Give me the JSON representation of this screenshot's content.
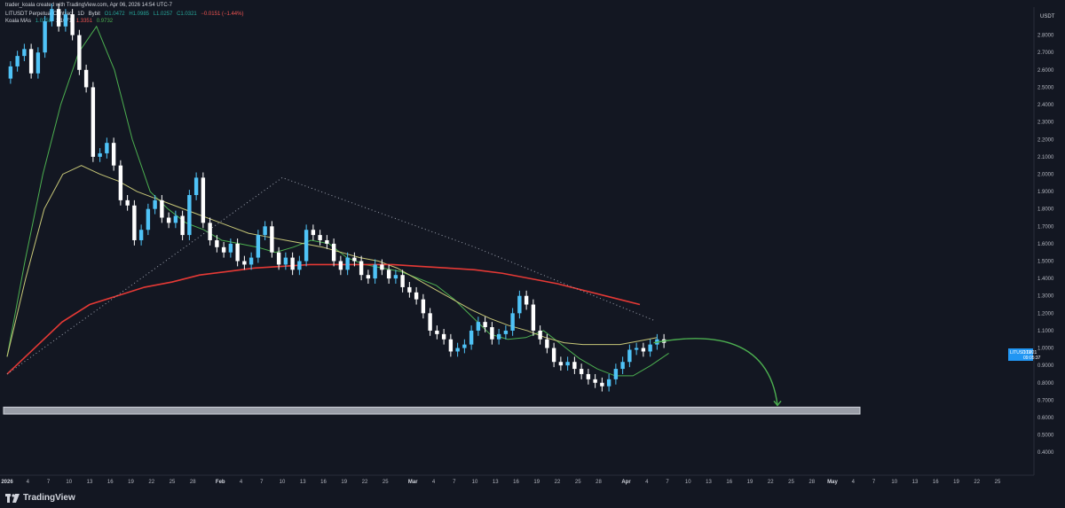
{
  "caption": "trader_koala created with TradingView.com, Apr 06, 2026 14:54 UTC-7",
  "symbol": {
    "name": "LITUSDT Perpetual Contract",
    "interval": "1D",
    "exchange": "Bybit",
    "open": "O1.0472",
    "high": "H1.0985",
    "low": "L1.0257",
    "close": "C1.0321",
    "change": "−0.0151 (−1.44%)"
  },
  "indicator": {
    "name": "Koala MAs",
    "values": [
      {
        "text": "1.0258",
        "color": "#26a69a"
      },
      {
        "text": "1.1071",
        "color": "#b2b5be"
      },
      {
        "text": "1.3351",
        "color": "#ef5350"
      },
      {
        "text": "0.9732",
        "color": "#4caf50"
      }
    ]
  },
  "currency": "USDT",
  "price_tag": {
    "label": "LITUSDT.P",
    "price": "1.0321",
    "countdown": "09:05:37",
    "color": "#2196f3"
  },
  "brand": "TradingView",
  "colors": {
    "background": "#131722",
    "up": "#4fc3f7",
    "down": "#ffffff",
    "ma_fast": "#4caf50",
    "ma_mid": "#c8c878",
    "ma_slow": "#e53935",
    "ma_dotted": "#9ea3b0",
    "zone": "#b2b5be",
    "arrow": "#4caf50"
  },
  "chart_data": {
    "type": "candlestick",
    "title": "",
    "xlabel": "",
    "ylabel": "",
    "ylim": [
      0.35,
      2.9
    ],
    "y_ticks": [
      "2.8000",
      "2.7000",
      "2.6000",
      "2.5000",
      "2.4000",
      "2.3000",
      "2.2000",
      "2.1000",
      "2.0000",
      "1.9000",
      "1.8000",
      "1.7000",
      "1.6000",
      "1.5000",
      "1.4000",
      "1.3000",
      "1.2000",
      "1.1000",
      "1.0000",
      "0.9000",
      "0.8000",
      "0.7000",
      "0.6000",
      "0.5000",
      "0.4000"
    ],
    "x_ticks": [
      {
        "label": "2026",
        "day": 0,
        "bold": true
      },
      {
        "label": "4",
        "day": 3
      },
      {
        "label": "7",
        "day": 6
      },
      {
        "label": "10",
        "day": 9
      },
      {
        "label": "13",
        "day": 12
      },
      {
        "label": "16",
        "day": 15
      },
      {
        "label": "19",
        "day": 18
      },
      {
        "label": "22",
        "day": 21
      },
      {
        "label": "25",
        "day": 24
      },
      {
        "label": "28",
        "day": 27
      },
      {
        "label": "Feb",
        "day": 31,
        "bold": true
      },
      {
        "label": "4",
        "day": 34
      },
      {
        "label": "7",
        "day": 37
      },
      {
        "label": "10",
        "day": 40
      },
      {
        "label": "13",
        "day": 43
      },
      {
        "label": "16",
        "day": 46
      },
      {
        "label": "19",
        "day": 49
      },
      {
        "label": "22",
        "day": 52
      },
      {
        "label": "25",
        "day": 55
      },
      {
        "label": "Mar",
        "day": 59,
        "bold": true
      },
      {
        "label": "4",
        "day": 62
      },
      {
        "label": "7",
        "day": 65
      },
      {
        "label": "10",
        "day": 68
      },
      {
        "label": "13",
        "day": 71
      },
      {
        "label": "16",
        "day": 74
      },
      {
        "label": "19",
        "day": 77
      },
      {
        "label": "22",
        "day": 80
      },
      {
        "label": "25",
        "day": 83
      },
      {
        "label": "28",
        "day": 86
      },
      {
        "label": "Apr",
        "day": 90,
        "bold": true
      },
      {
        "label": "4",
        "day": 93
      },
      {
        "label": "7",
        "day": 96
      },
      {
        "label": "10",
        "day": 99
      },
      {
        "label": "13",
        "day": 102
      },
      {
        "label": "16",
        "day": 105
      },
      {
        "label": "19",
        "day": 108
      },
      {
        "label": "22",
        "day": 111
      },
      {
        "label": "25",
        "day": 114
      },
      {
        "label": "28",
        "day": 117
      },
      {
        "label": "May",
        "day": 120,
        "bold": true
      },
      {
        "label": "4",
        "day": 123
      },
      {
        "label": "7",
        "day": 126
      },
      {
        "label": "10",
        "day": 129
      },
      {
        "label": "13",
        "day": 132
      },
      {
        "label": "16",
        "day": 135
      },
      {
        "label": "19",
        "day": 138
      },
      {
        "label": "22",
        "day": 141
      },
      {
        "label": "25",
        "day": 144
      }
    ],
    "closes": [
      2.62,
      2.68,
      2.72,
      2.58,
      2.7,
      2.88,
      2.95,
      2.85,
      2.92,
      2.8,
      2.6,
      2.5,
      2.1,
      2.12,
      2.18,
      2.05,
      1.85,
      1.82,
      1.62,
      1.68,
      1.8,
      1.85,
      1.75,
      1.72,
      1.76,
      1.65,
      1.88,
      1.98,
      1.72,
      1.62,
      1.58,
      1.55,
      1.6,
      1.5,
      1.48,
      1.52,
      1.65,
      1.7,
      1.55,
      1.48,
      1.52,
      1.45,
      1.5,
      1.68,
      1.65,
      1.62,
      1.6,
      1.5,
      1.45,
      1.52,
      1.5,
      1.42,
      1.4,
      1.48,
      1.45,
      1.4,
      1.42,
      1.35,
      1.32,
      1.28,
      1.2,
      1.1,
      1.08,
      1.05,
      0.98,
      1.0,
      1.02,
      1.1,
      1.15,
      1.12,
      1.05,
      1.08,
      1.1,
      1.2,
      1.3,
      1.25,
      1.1,
      1.05,
      1.0,
      0.92,
      0.9,
      0.92,
      0.88,
      0.85,
      0.82,
      0.8,
      0.78,
      0.82,
      0.88,
      0.92,
      0.99,
      1.0,
      0.98,
      1.02,
      1.05,
      1.03
    ],
    "opens": [
      2.55,
      2.62,
      2.68,
      2.72,
      2.58,
      2.7,
      2.88,
      2.95,
      2.85,
      2.92,
      2.8,
      2.6,
      2.5,
      2.1,
      2.12,
      2.18,
      2.05,
      1.85,
      1.82,
      1.62,
      1.68,
      1.8,
      1.85,
      1.75,
      1.72,
      1.76,
      1.65,
      1.88,
      1.98,
      1.72,
      1.62,
      1.58,
      1.55,
      1.6,
      1.5,
      1.48,
      1.52,
      1.65,
      1.7,
      1.55,
      1.48,
      1.52,
      1.45,
      1.5,
      1.68,
      1.65,
      1.62,
      1.6,
      1.5,
      1.45,
      1.52,
      1.5,
      1.42,
      1.4,
      1.48,
      1.45,
      1.4,
      1.42,
      1.35,
      1.32,
      1.28,
      1.2,
      1.1,
      1.08,
      1.05,
      0.98,
      1.0,
      1.02,
      1.1,
      1.15,
      1.12,
      1.05,
      1.08,
      1.1,
      1.2,
      1.3,
      1.25,
      1.1,
      1.05,
      1.0,
      0.92,
      0.9,
      0.92,
      0.88,
      0.85,
      0.82,
      0.8,
      0.78,
      0.82,
      0.88,
      0.92,
      0.99,
      1.0,
      0.98,
      1.02,
      1.05
    ],
    "series": [
      {
        "values_from_day": 0,
        "y": [
          0.95,
          1.5,
          2.0,
          2.4,
          2.7,
          2.85,
          2.6,
          2.2,
          1.9,
          1.8,
          1.72,
          1.68,
          1.62,
          1.6,
          1.58,
          1.55,
          1.58,
          1.62,
          1.6,
          1.52,
          1.48,
          1.46,
          1.44,
          1.4,
          1.36,
          1.28,
          1.18,
          1.08,
          1.05,
          1.06,
          1.1,
          1.02,
          0.94,
          0.88,
          0.84,
          0.84,
          0.9,
          0.97
        ],
        "step": 2.6
      },
      {
        "values_from_day": 0,
        "y": [
          0.95,
          1.4,
          1.8,
          2.0,
          2.05,
          2.0,
          1.96,
          1.9,
          1.86,
          1.82,
          1.78,
          1.74,
          1.7,
          1.66,
          1.64,
          1.62,
          1.6,
          1.58,
          1.55,
          1.52,
          1.5,
          1.46,
          1.4,
          1.34,
          1.28,
          1.22,
          1.17,
          1.13,
          1.1,
          1.06,
          1.03,
          1.02,
          1.02,
          1.02,
          1.04,
          1.06
        ],
        "step": 2.7
      },
      {
        "values_from_day": 0,
        "y": [
          0.85,
          1.0,
          1.15,
          1.25,
          1.3,
          1.35,
          1.38,
          1.42,
          1.44,
          1.46,
          1.47,
          1.48,
          1.48,
          1.48,
          1.48,
          1.47,
          1.46,
          1.45,
          1.43,
          1.4,
          1.37,
          1.33,
          1.29,
          1.25
        ],
        "step": 4.0
      },
      {
        "points": [
          [
            0,
            0.85
          ],
          [
            40,
            1.98
          ],
          [
            68,
            1.58
          ],
          [
            94,
            1.16
          ]
        ]
      }
    ],
    "support_zone": {
      "low": 0.62,
      "high": 0.66,
      "to_day": 124
    },
    "projection": {
      "from_day": 94,
      "from": 1.03,
      "peak_day": 101,
      "peak": 1.02,
      "to_day": 112,
      "to": 0.67
    }
  }
}
